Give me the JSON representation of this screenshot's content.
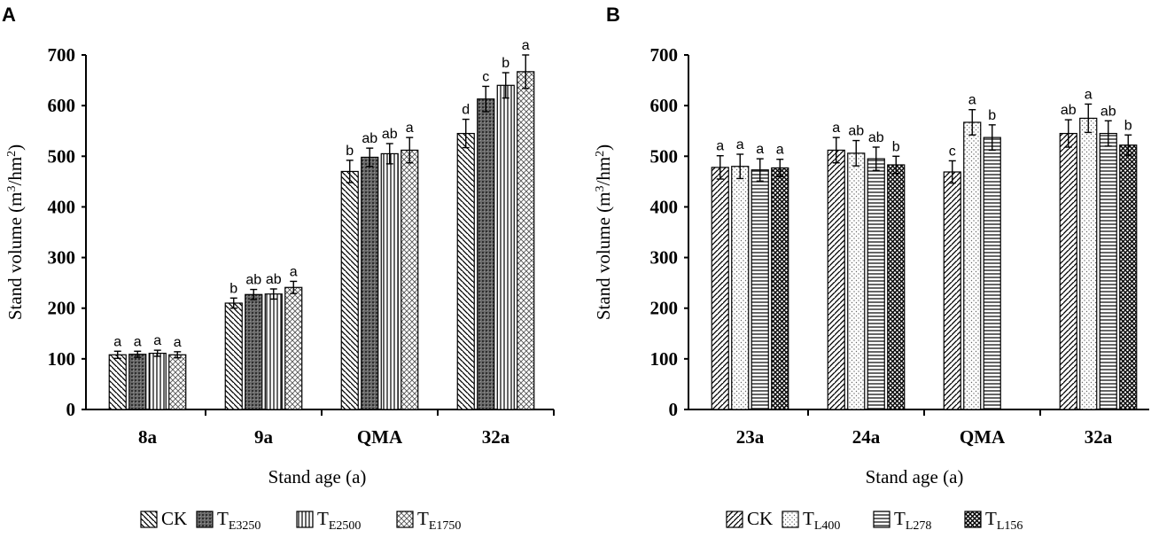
{
  "chart_data": [
    {
      "type": "bar",
      "panel": "A",
      "title": "",
      "xlabel": "Stand age (a)",
      "ylabel_main": "Stand volume (m",
      "ylabel_sup1": "3",
      "ylabel_mid": "/hm",
      "ylabel_sup2": "2",
      "ylabel_end": ")",
      "ylim": [
        0,
        700
      ],
      "yticks": [
        "0",
        "100",
        "200",
        "300",
        "400",
        "500",
        "600",
        "700"
      ],
      "categories": [
        "8a",
        "9a",
        "QMA",
        "32a"
      ],
      "series": [
        {
          "name": "CK",
          "name_main": "CK",
          "name_sub": "",
          "pattern": "diag-back",
          "values": [
            108,
            210,
            470,
            545
          ],
          "errors": [
            7,
            10,
            22,
            28
          ],
          "letters": [
            "a",
            "b",
            "b",
            "d"
          ]
        },
        {
          "name": "TE3250",
          "name_main": "T",
          "name_sub": "E3250",
          "pattern": "dots-dark",
          "values": [
            109,
            227,
            498,
            613
          ],
          "errors": [
            6,
            10,
            18,
            25
          ],
          "letters": [
            "a",
            "ab",
            "ab",
            "c"
          ]
        },
        {
          "name": "TE2500",
          "name_main": "T",
          "name_sub": "E2500",
          "pattern": "vlines",
          "values": [
            111,
            228,
            505,
            640
          ],
          "errors": [
            6,
            10,
            20,
            25
          ],
          "letters": [
            "a",
            "ab",
            "ab",
            "b"
          ]
        },
        {
          "name": "TE1750",
          "name_main": "T",
          "name_sub": "E1750",
          "pattern": "crosshatch",
          "values": [
            108,
            241,
            512,
            667
          ],
          "errors": [
            6,
            12,
            25,
            33
          ],
          "letters": [
            "a",
            "a",
            "a",
            "a"
          ]
        }
      ]
    },
    {
      "type": "bar",
      "panel": "B",
      "title": "",
      "xlabel": "Stand age (a)",
      "ylabel_main": "Stand volume (m",
      "ylabel_sup1": "3",
      "ylabel_mid": "/hm",
      "ylabel_sup2": "2",
      "ylabel_end": ")",
      "ylim": [
        0,
        700
      ],
      "yticks": [
        "0",
        "100",
        "200",
        "300",
        "400",
        "500",
        "600",
        "700"
      ],
      "categories": [
        "23a",
        "24a",
        "QMA",
        "32a"
      ],
      "series": [
        {
          "name": "CK",
          "name_main": "CK",
          "name_sub": "",
          "pattern": "diag-fwd",
          "values": [
            478,
            512,
            469,
            545
          ],
          "errors": [
            23,
            25,
            22,
            27
          ],
          "letters": [
            "a",
            "a",
            "c",
            "ab"
          ]
        },
        {
          "name": "TL400",
          "name_main": "T",
          "name_sub": "L400",
          "pattern": "dots-light",
          "values": [
            480,
            506,
            567,
            575
          ],
          "errors": [
            24,
            25,
            25,
            28
          ],
          "letters": [
            "a",
            "ab",
            "a",
            "a"
          ]
        },
        {
          "name": "TL278",
          "name_main": "T",
          "name_sub": "L278",
          "pattern": "hlines",
          "values": [
            473,
            495,
            537,
            545
          ],
          "errors": [
            22,
            23,
            25,
            25
          ],
          "letters": [
            "a",
            "ab",
            "b",
            "ab"
          ]
        },
        {
          "name": "TL156",
          "name_main": "T",
          "name_sub": "L156",
          "pattern": "crosshatch-dark",
          "values": [
            477,
            483,
            null,
            522
          ],
          "errors": [
            17,
            17,
            null,
            20
          ],
          "letters": [
            "a",
            "b",
            "",
            "b"
          ]
        }
      ]
    }
  ]
}
